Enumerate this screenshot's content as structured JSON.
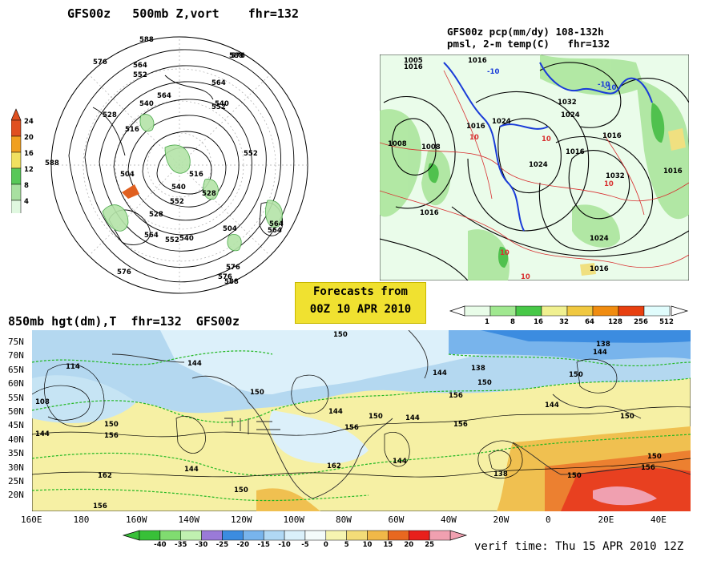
{
  "titles": {
    "polar": "GFS00z   500mb Z,vort    fhr=132",
    "precip_line1": "GFS00z pcp(mm/dy) 108-132h",
    "precip_line2": "pmsl, 2-m temp(C)   fhr=132",
    "hgt850": "850mb hgt(dm),T  fhr=132  GFS00z",
    "forecast_line1": "Forecasts from",
    "forecast_line2": "00Z 10 APR 2010",
    "verif": "verif time: Thu 15 APR 2010 12Z"
  },
  "polar_map": {
    "contour_labels": [
      "588",
      "576",
      "564",
      "552",
      "540",
      "528",
      "516",
      "504",
      "576",
      "564",
      "552",
      "540",
      "528",
      "516",
      "528",
      "540",
      "552",
      "564",
      "576",
      "588",
      "552",
      "564",
      "504",
      "588",
      "576",
      "540",
      "552",
      "564",
      "576",
      "588",
      "564"
    ],
    "vort_colorbar": {
      "labels": [
        "24",
        "20",
        "16",
        "12",
        "8",
        "4"
      ],
      "colors": [
        "#e05020",
        "#f0a020",
        "#f0e060",
        "#58c858",
        "#a8e0a0",
        "#e0f8e0"
      ]
    }
  },
  "precip_map": {
    "pressure_labels": [
      "1005",
      "1016",
      "1016",
      "1008",
      "1008",
      "1024",
      "1016",
      "1032",
      "1024",
      "1016",
      "1024",
      "1016",
      "1032",
      "1016",
      "1024",
      "1016",
      "1016"
    ],
    "temp_labels": [
      "-10",
      "10",
      "-10",
      "10",
      "10",
      "10",
      "10",
      "-10"
    ],
    "colorbar": {
      "labels": [
        "1",
        "8",
        "16",
        "32",
        "64",
        "128",
        "256",
        "512"
      ],
      "colors": [
        "#e8fce8",
        "#a0e890",
        "#48c848",
        "#f0f090",
        "#f0c840",
        "#f08c10",
        "#e84010",
        "#e0fcfc"
      ]
    }
  },
  "map850": {
    "lat_labels": [
      "75N",
      "70N",
      "65N",
      "60N",
      "55N",
      "50N",
      "45N",
      "40N",
      "35N",
      "30N",
      "25N",
      "20N"
    ],
    "lon_labels": [
      "160E",
      "180",
      "160W",
      "140W",
      "120W",
      "100W",
      "80W",
      "60W",
      "40W",
      "20W",
      "0",
      "20E",
      "40E"
    ],
    "hgt_labels": [
      "114",
      "108",
      "144",
      "150",
      "156",
      "162",
      "144",
      "150",
      "156",
      "144",
      "150",
      "144",
      "144",
      "150",
      "156",
      "162",
      "144",
      "150",
      "156",
      "138",
      "144",
      "150",
      "156",
      "138",
      "144",
      "150",
      "150",
      "150",
      "144",
      "138",
      "150",
      "156"
    ],
    "temp_colorbar": {
      "labels": [
        "-40",
        "-35",
        "-30",
        "-25",
        "-20",
        "-15",
        "-10",
        "-5",
        "0",
        "5",
        "10",
        "15",
        "20",
        "25"
      ],
      "colors": [
        "#38c038",
        "#80dc70",
        "#c0f0b0",
        "#9a7ad8",
        "#3c8ce0",
        "#78b4ec",
        "#b0d8f4",
        "#daf0fa",
        "#f4fbfa",
        "#f6f4b0",
        "#f3dc78",
        "#f0b848",
        "#e86820",
        "#e8201c",
        "#f0a0b0"
      ]
    }
  }
}
